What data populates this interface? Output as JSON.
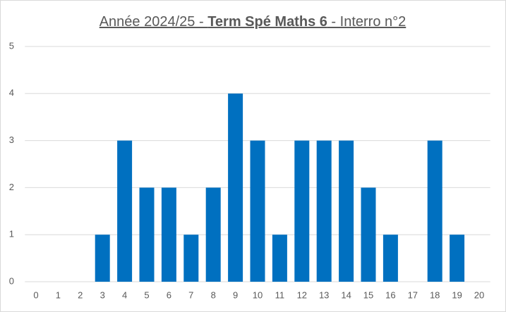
{
  "chart_data": {
    "type": "bar",
    "title_parts": [
      "Année 2024/25 - ",
      "Term Spé Maths 6",
      " - Interro n°2"
    ],
    "categories": [
      "0",
      "1",
      "2",
      "3",
      "4",
      "5",
      "6",
      "7",
      "8",
      "9",
      "10",
      "11",
      "12",
      "13",
      "14",
      "15",
      "16",
      "17",
      "18",
      "19",
      "20"
    ],
    "values": [
      0,
      0,
      0,
      1,
      3,
      2,
      2,
      1,
      2,
      4,
      3,
      1,
      3,
      3,
      3,
      2,
      1,
      0,
      3,
      1,
      0
    ],
    "color": "#0070c0",
    "ylim": [
      0,
      5
    ],
    "yticks": [
      0,
      1,
      2,
      3,
      4,
      5
    ],
    "grid": true
  }
}
